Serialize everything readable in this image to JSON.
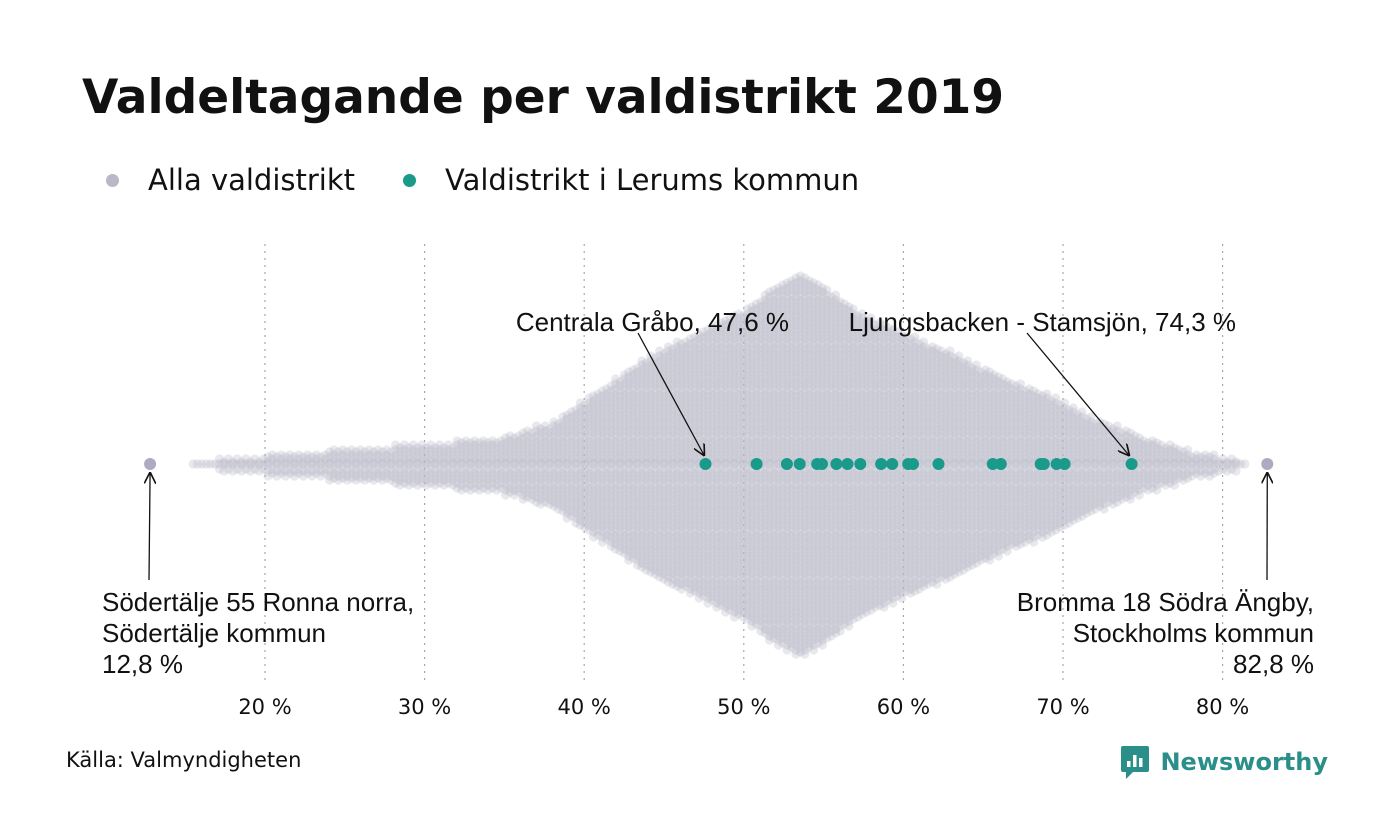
{
  "title": "Valdeltagande per valdistrikt 2019",
  "legend": [
    {
      "label": "Alla valdistrikt",
      "color": "#b9b7c8"
    },
    {
      "label": "Valdistrikt i Lerums kommun",
      "color": "#1a9a8a"
    }
  ],
  "source": "Källa: Valmyndigheten",
  "brand": "Newsworthy",
  "chart_data": {
    "type": "scatter",
    "subtype": "beeswarm",
    "title": "Valdeltagande per valdistrikt 2019",
    "xlabel": "",
    "ylabel": "",
    "xlim": [
      12.0,
      84.0
    ],
    "x_ticks": [
      20,
      30,
      40,
      50,
      60,
      70,
      80
    ],
    "x_tick_labels": [
      "20 %",
      "30 %",
      "40 %",
      "50 %",
      "60 %",
      "70 %",
      "80 %"
    ],
    "grid": "vertical dotted",
    "legend_position": "top-left",
    "series": [
      {
        "name": "Valdistrikt i Lerums kommun",
        "color": "#1a9a8a",
        "x": [
          47.6,
          50.8,
          52.7,
          53.5,
          54.6,
          54.9,
          55.8,
          56.5,
          57.3,
          58.6,
          59.3,
          60.3,
          60.6,
          62.2,
          65.6,
          66.1,
          68.6,
          68.8,
          69.6,
          70.1,
          74.3
        ]
      },
      {
        "name": "Alla valdistrikt",
        "color": "#b9b7c8",
        "x_range": [
          12.8,
          82.8
        ],
        "density_peak": 53.5,
        "distribution_profile": [
          [
            12.8,
            0
          ],
          [
            15,
            0
          ],
          [
            17,
            1
          ],
          [
            20,
            2
          ],
          [
            24,
            3
          ],
          [
            28,
            4
          ],
          [
            32,
            5
          ],
          [
            35,
            6
          ],
          [
            38,
            9
          ],
          [
            41,
            16
          ],
          [
            44,
            23
          ],
          [
            47,
            28
          ],
          [
            50,
            33
          ],
          [
            52,
            38
          ],
          [
            53.5,
            41
          ],
          [
            55,
            38
          ],
          [
            57,
            33
          ],
          [
            60,
            28
          ],
          [
            63,
            24
          ],
          [
            66,
            19
          ],
          [
            69,
            15
          ],
          [
            72,
            10
          ],
          [
            75,
            6
          ],
          [
            78,
            3
          ],
          [
            81,
            1
          ],
          [
            82.8,
            0
          ]
        ]
      }
    ],
    "annotations": [
      {
        "point": 47.6,
        "lines": [
          "Centrala Gråbo, 47,6 %"
        ]
      },
      {
        "point": 74.3,
        "lines": [
          "Ljungsbacken - Stamsjön, 74,3 %"
        ]
      },
      {
        "point": 12.8,
        "lines": [
          "Södertälje 55 Ronna norra,",
          "Södertälje kommun",
          "12,8 %"
        ]
      },
      {
        "point": 82.8,
        "lines": [
          "Bromma 18 Södra Ängby,",
          "Stockholms kommun",
          "82,8 %"
        ]
      }
    ]
  }
}
